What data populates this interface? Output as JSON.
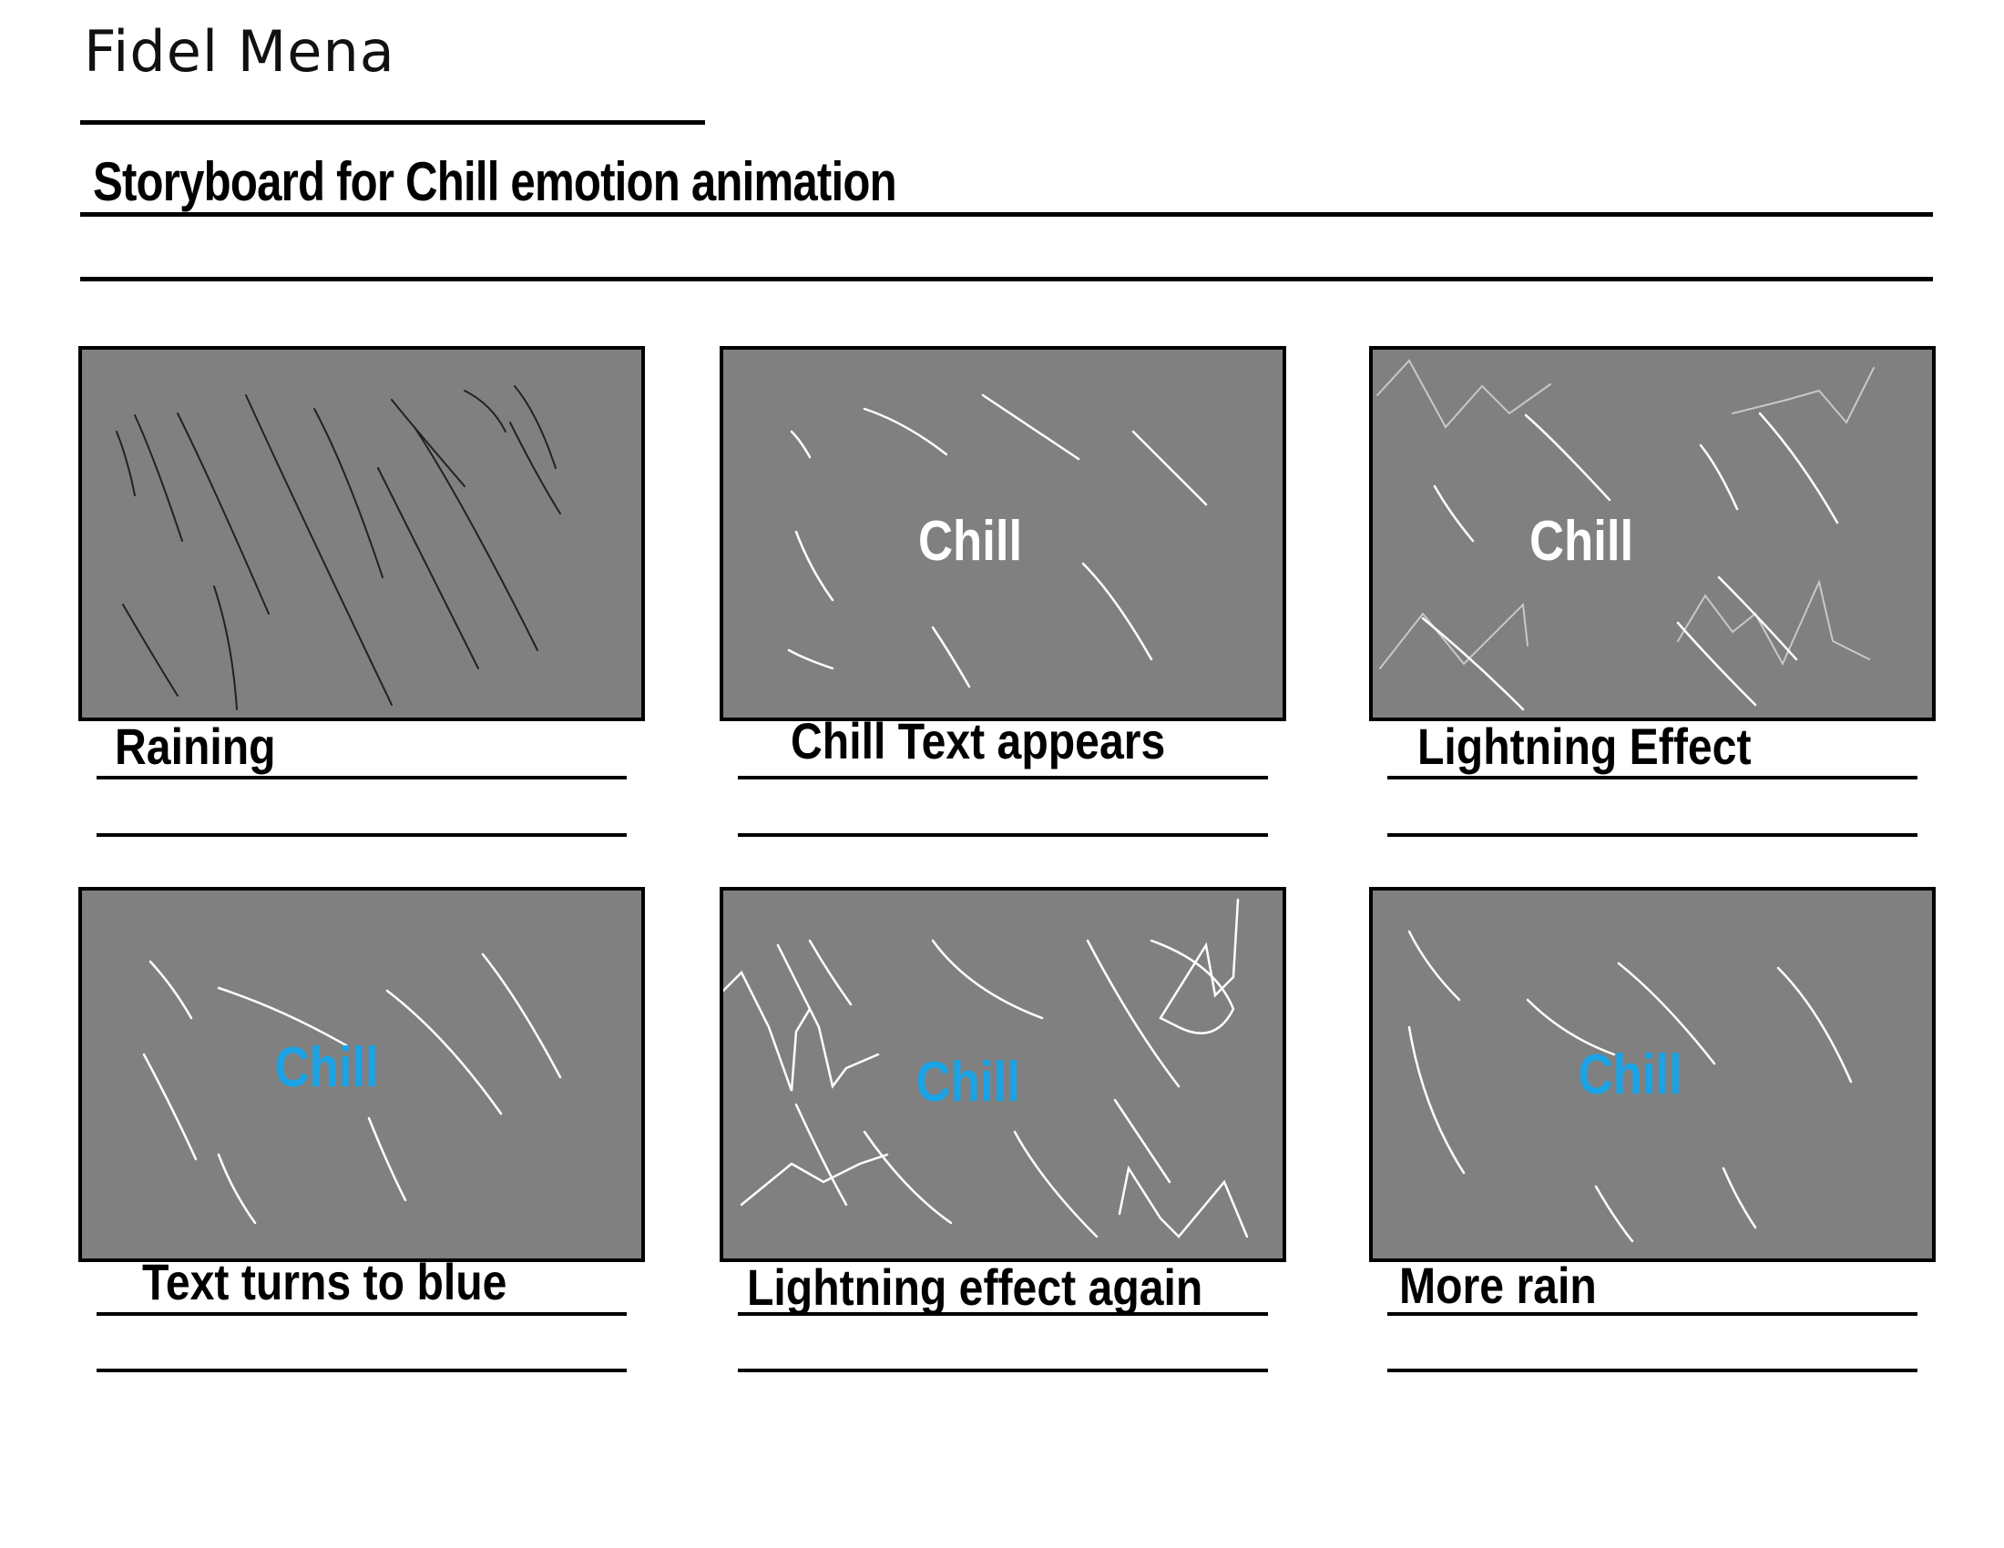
{
  "author": "Fidel Mena",
  "title": "Storyboard for Chill emotion animation",
  "panels": [
    {
      "caption": "Raining",
      "text": "",
      "text_color": ""
    },
    {
      "caption": "Chill Text appears",
      "text": "Chill",
      "text_color": "#ffffff"
    },
    {
      "caption": "Lightning Effect",
      "text": "Chill",
      "text_color": "#ffffff"
    },
    {
      "caption": "Text turns to blue",
      "text": "Chill",
      "text_color": "#1aa3e6"
    },
    {
      "caption": "Lightning effect again",
      "text": "Chill",
      "text_color": "#1aa3e6"
    },
    {
      "caption": "More rain",
      "text": "Chill",
      "text_color": "#1aa3e6"
    }
  ],
  "colors": {
    "frame_bg": "#808080",
    "rain_dark": "#222222",
    "rain_light": "#ffffff",
    "lightning": "#c8c8c8",
    "chill_blue": "#1aa3e6"
  }
}
